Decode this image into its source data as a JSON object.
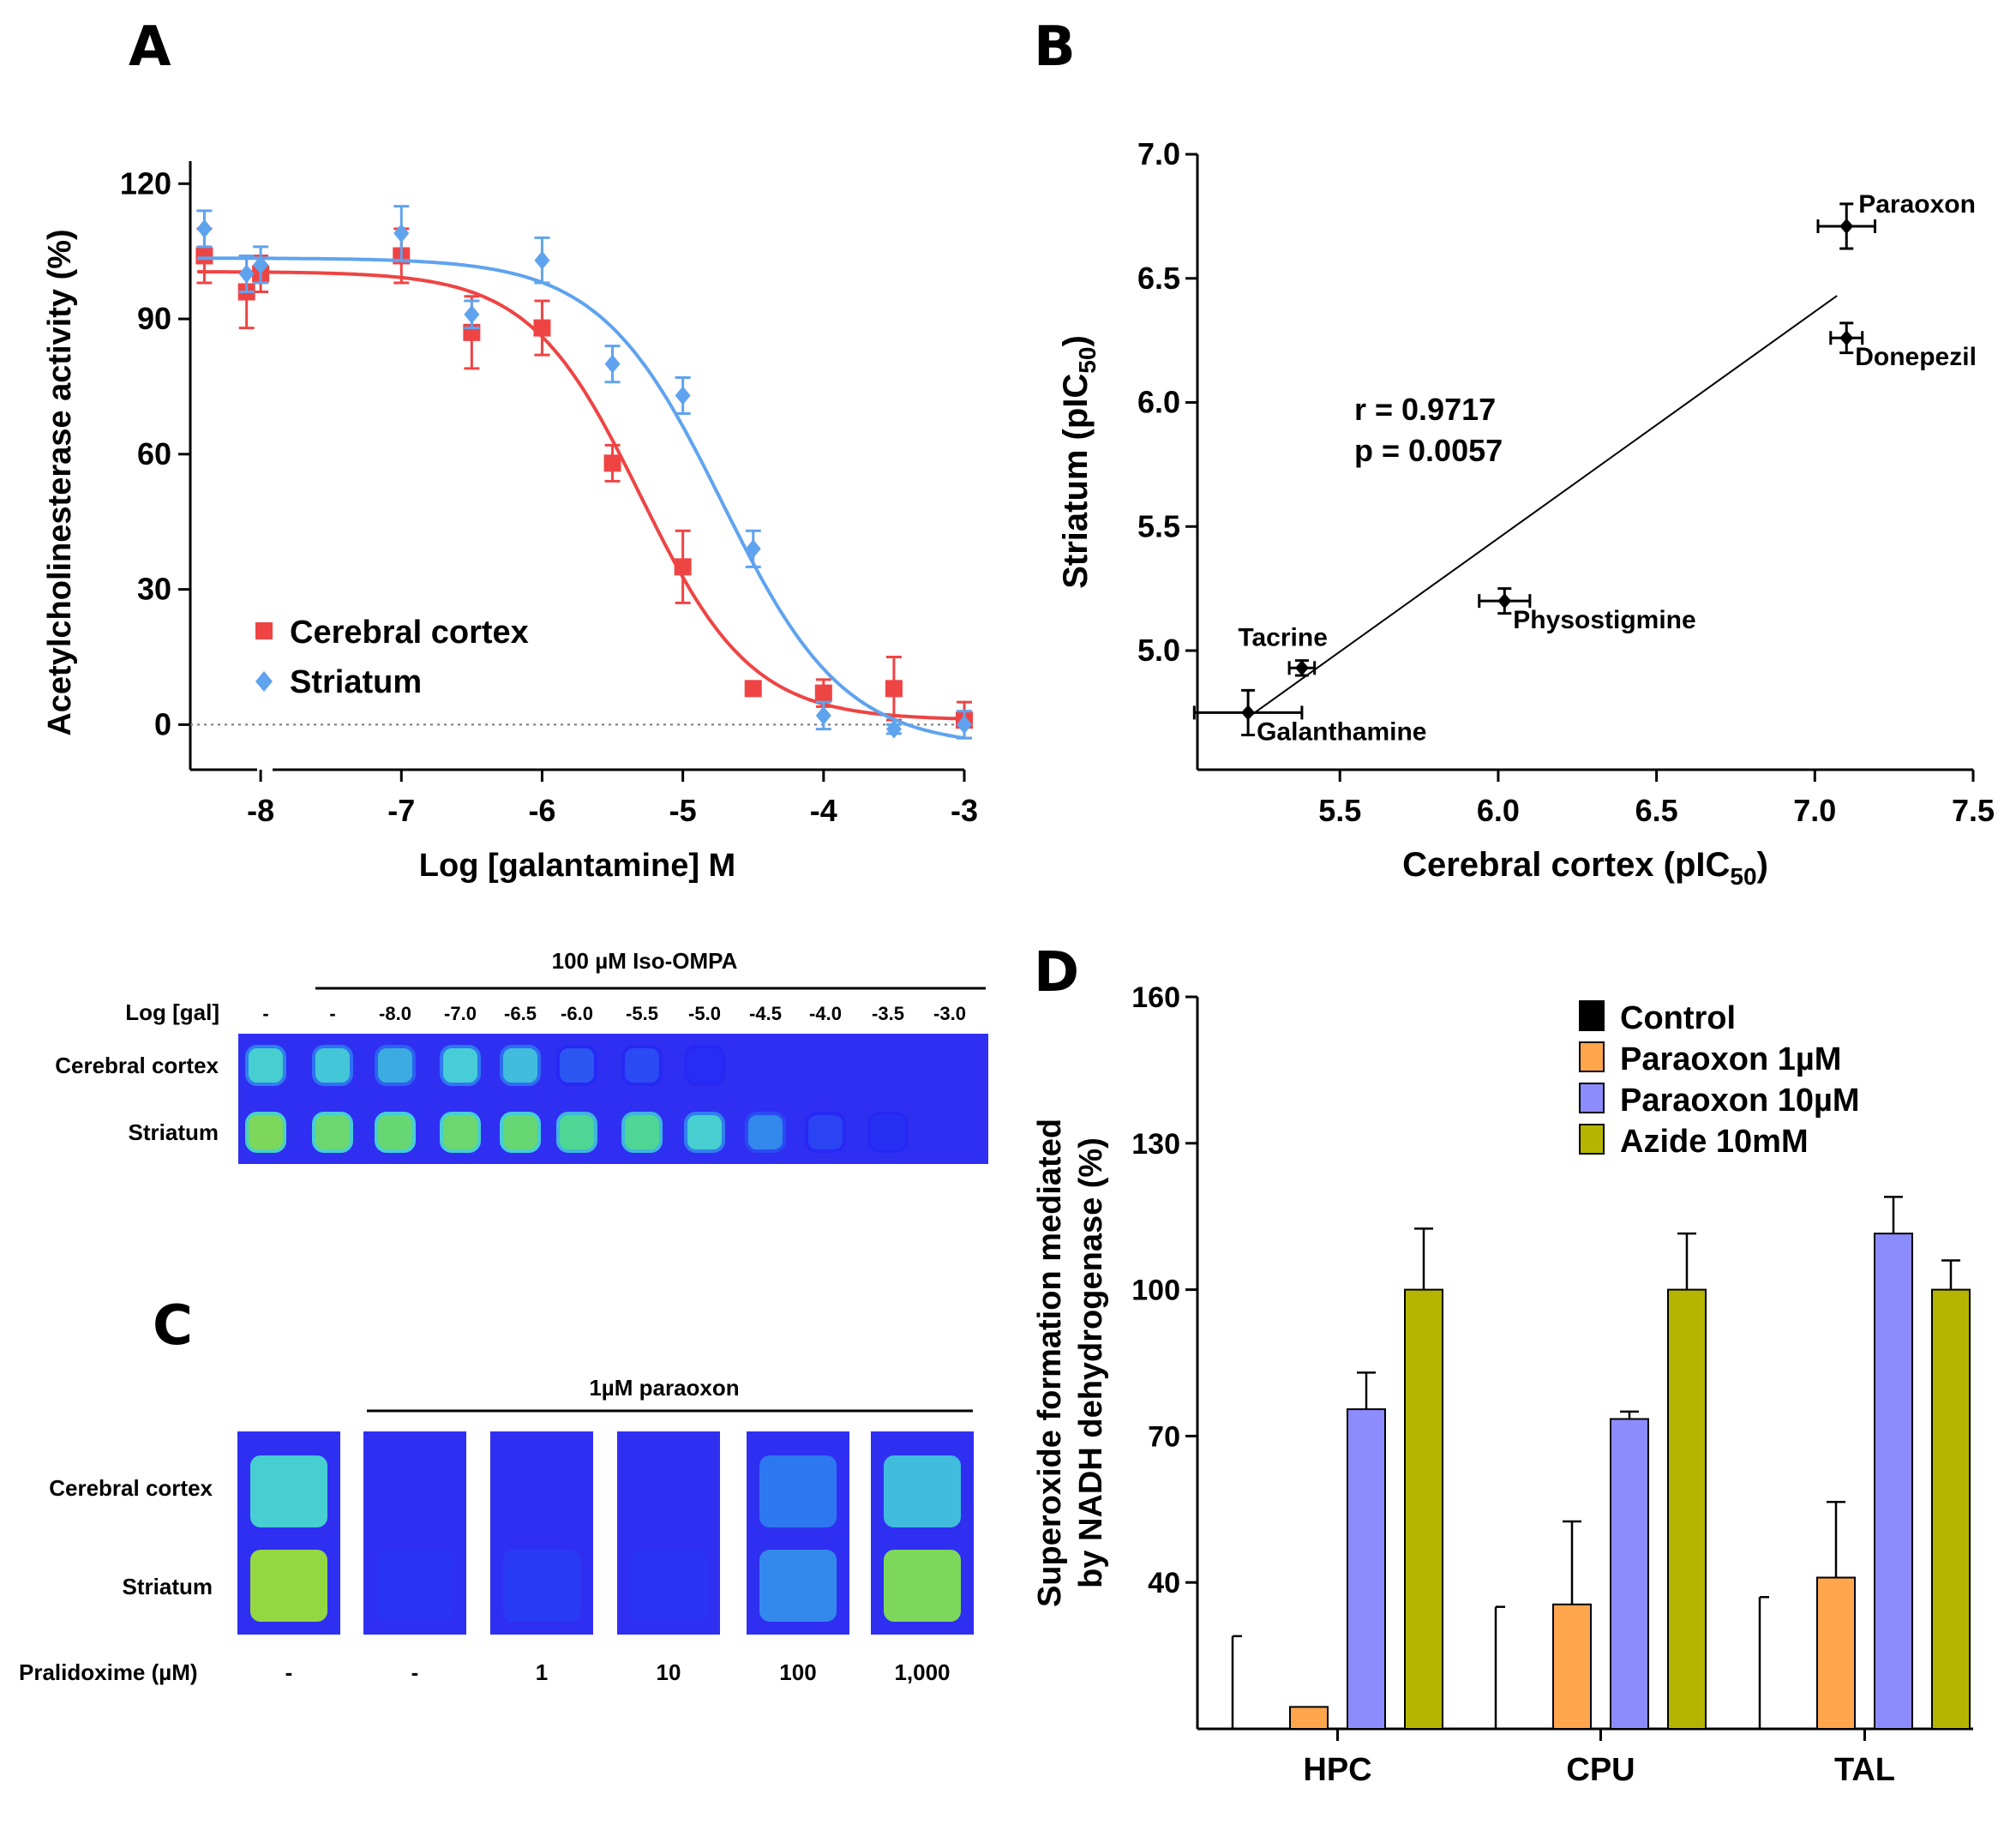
{
  "panels": {
    "A": "A",
    "B": "B",
    "C": "C",
    "D": "D"
  },
  "chart_data": [
    {
      "id": "A",
      "type": "line",
      "title": "",
      "xlabel": "Log [galantamine] M",
      "ylabel": "Acetylcholinesterase activity (%)",
      "xlim": [
        -8.5,
        -3
      ],
      "ylim": [
        -10,
        125
      ],
      "xticks": [
        -8,
        -7,
        -6,
        -5,
        -4,
        -3
      ],
      "xtick_labels": [
        "-8",
        "-7",
        "-6",
        "-5",
        "-4",
        "-3"
      ],
      "yticks": [
        0,
        30,
        60,
        90,
        120
      ],
      "ytick_labels": [
        "0",
        "30",
        "60",
        "90",
        "120"
      ],
      "legend_position": "bottom-left",
      "series": [
        {
          "name": "Cerebral cortex",
          "color": "#ef4444",
          "marker": "square",
          "x": [
            -8.4,
            -8.1,
            -8.0,
            -7.0,
            -6.5,
            -6.0,
            -5.5,
            -5.0,
            -4.5,
            -4.0,
            -3.5,
            -3.0
          ],
          "y": [
            104,
            96,
            100,
            104,
            87,
            88,
            58,
            35,
            8,
            7,
            8,
            1
          ],
          "err": [
            6,
            8,
            4,
            6,
            8,
            6,
            4,
            8,
            0,
            3,
            7,
            4
          ],
          "fit": {
            "top": 100.5,
            "bottom": 1,
            "logIC50": -5.3,
            "hill": 1.1
          }
        },
        {
          "name": "Striatum",
          "color": "#5fa3ee",
          "marker": "diamond",
          "x": [
            -8.4,
            -8.1,
            -8.0,
            -7.0,
            -6.5,
            -6.0,
            -5.5,
            -5.0,
            -4.5,
            -4.0,
            -3.5,
            -3.0
          ],
          "y": [
            110,
            100,
            102,
            109,
            91,
            103,
            80,
            73,
            39,
            2,
            -1,
            0
          ],
          "err": [
            4,
            4,
            4,
            6,
            3,
            5,
            4,
            4,
            4,
            3,
            1,
            3
          ],
          "fit": {
            "top": 103.5,
            "bottom": -5,
            "logIC50": -4.72,
            "hill": 1.0
          }
        }
      ]
    },
    {
      "id": "B",
      "type": "scatter",
      "title": "",
      "xlabel": "Cerebral cortex (pIC",
      "xlabel_sub": "50",
      "xlabel_end": ")",
      "ylabel": "Striatum (pIC",
      "ylabel_sub": "50",
      "ylabel_end": ")",
      "xlim": [
        5.05,
        7.5
      ],
      "ylim": [
        4.52,
        7.0
      ],
      "xticks": [
        5.5,
        6.0,
        6.5,
        7.0,
        7.5
      ],
      "xtick_labels": [
        "5.5",
        "6.0",
        "6.5",
        "7.0",
        "7.5"
      ],
      "yticks": [
        5.0,
        5.5,
        6.0,
        6.5,
        7.0
      ],
      "ytick_labels": [
        "5.0",
        "5.5",
        "6.0",
        "6.5",
        "7.0"
      ],
      "points": [
        {
          "label": "Paraoxon",
          "x": 7.1,
          "y": 6.71,
          "xerr": 0.09,
          "yerr": 0.09,
          "label_pos": "upper-right"
        },
        {
          "label": "Donepezil",
          "x": 7.1,
          "y": 6.26,
          "xerr": 0.05,
          "yerr": 0.06,
          "label_pos": "lower-right"
        },
        {
          "label": "Physostigmine",
          "x": 6.02,
          "y": 5.2,
          "xerr": 0.08,
          "yerr": 0.05,
          "label_pos": "lower-right"
        },
        {
          "label": "Tacrine",
          "x": 5.38,
          "y": 4.93,
          "xerr": 0.04,
          "yerr": 0.03,
          "label_pos": "upper-left"
        },
        {
          "label": "Galanthamine",
          "x": 5.21,
          "y": 4.75,
          "xerr": 0.17,
          "yerr": 0.09,
          "label_pos": "lower-right"
        }
      ],
      "regression": {
        "x": [
          5.22,
          7.07
        ],
        "y": [
          4.74,
          6.43
        ]
      },
      "annotations": [
        "r  = 0.9717",
        "p = 0.0057"
      ]
    },
    {
      "id": "D",
      "type": "bar",
      "title": "",
      "xlabel": "",
      "ylabel_line1": "Superoxide  formation mediated",
      "ylabel_line2": "by NADH dehydrogenase (%)",
      "categories": [
        "HPC",
        "CPU",
        "TAL"
      ],
      "ylim": [
        10,
        160
      ],
      "yticks": [
        40,
        70,
        100,
        130,
        160
      ],
      "ytick_labels": [
        "40",
        "70",
        "100",
        "130",
        "160"
      ],
      "legend_position": "top-right",
      "series": [
        {
          "name": "Control",
          "color": "#000000",
          "values": [
            10,
            10,
            10
          ],
          "err": [
            19,
            25,
            27
          ]
        },
        {
          "name": "Paraoxon 1µM",
          "color": "#ffa64d",
          "values": [
            14.5,
            35.5,
            41
          ],
          "err": [
            0,
            17,
            15.5
          ]
        },
        {
          "name": "Paraoxon 10µM",
          "color": "#8c8cff",
          "values": [
            75.5,
            73.5,
            111.5
          ],
          "err": [
            7.5,
            1.5,
            7.5
          ]
        },
        {
          "name": "Azide 10mM",
          "color": "#b5b500",
          "values": [
            100,
            100,
            100
          ],
          "err": [
            12.5,
            11.5,
            6
          ]
        }
      ]
    }
  ],
  "blot1": {
    "header": "100 µM Iso-OMPA",
    "row_label_title": "Log [gal]",
    "col_labels": [
      "-",
      "-",
      "-8.0",
      "-7.0",
      "-6.5",
      "-6.0",
      "-5.5",
      "-5.0",
      "-4.5",
      "-4.0",
      "-3.5",
      "-3.0"
    ],
    "rows": [
      {
        "label": "Cerebral cortex",
        "intensity": [
          0.62,
          0.58,
          0.5,
          0.6,
          0.55,
          0.2,
          0.15,
          0.02,
          0.0,
          0.0,
          0.0,
          0.0
        ]
      },
      {
        "label": "Striatum",
        "intensity": [
          0.9,
          0.86,
          0.85,
          0.86,
          0.85,
          0.78,
          0.78,
          0.62,
          0.4,
          0.12,
          0.03,
          0.0
        ]
      }
    ]
  },
  "blot2": {
    "header": "1µM paraoxon",
    "row_labels": [
      "Cerebral cortex",
      "Striatum"
    ],
    "x_title": "Pralidoxime (µM)",
    "col_labels": [
      "-",
      "-",
      "1",
      "10",
      "100",
      "1,000"
    ],
    "intensity_top": [
      0.62,
      0.0,
      0.0,
      0.0,
      0.35,
      0.55
    ],
    "intensity_bottom": [
      0.95,
      0.05,
      0.08,
      0.05,
      0.4,
      0.9
    ]
  }
}
